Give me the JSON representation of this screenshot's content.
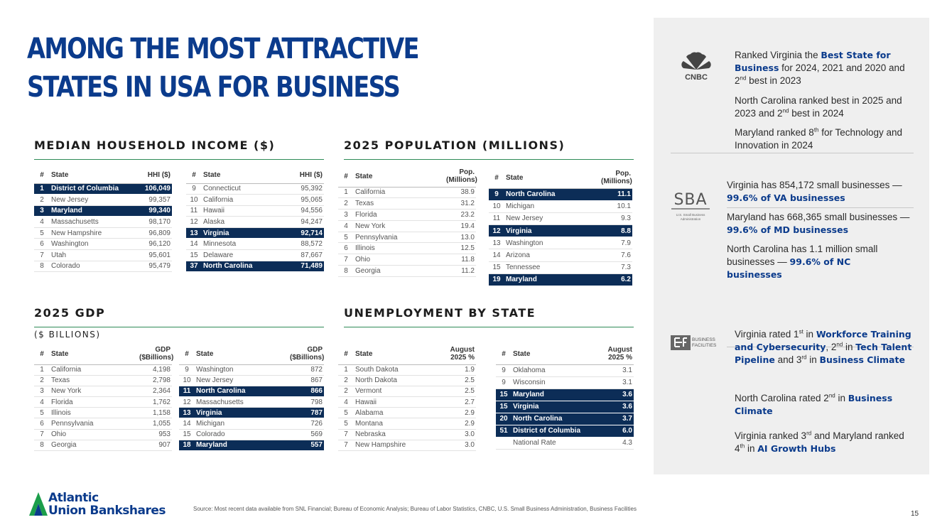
{
  "title_line1": "AMONG THE MOST ATTRACTIVE",
  "title_line2": "STATES IN USA FOR BUSINESS",
  "income": {
    "heading": "MEDIAN HOUSEHOLD INCOME ($)",
    "col_num": "#",
    "col_state": "State",
    "col_val": "HHI ($)",
    "left": [
      [
        "1",
        "District of Columbia",
        "106,049",
        true
      ],
      [
        "2",
        "New Jersey",
        "99,357",
        false
      ],
      [
        "3",
        "Maryland",
        "99,340",
        true
      ],
      [
        "4",
        "Massachusetts",
        "98,170",
        false
      ],
      [
        "5",
        "New Hampshire",
        "96,809",
        false
      ],
      [
        "6",
        "Washington",
        "96,120",
        false
      ],
      [
        "7",
        "Utah",
        "95,601",
        false
      ],
      [
        "8",
        "Colorado",
        "95,479",
        false
      ]
    ],
    "right": [
      [
        "9",
        "Connecticut",
        "95,392",
        false
      ],
      [
        "10",
        "California",
        "95,065",
        false
      ],
      [
        "11",
        "Hawaii",
        "94,556",
        false
      ],
      [
        "12",
        "Alaska",
        "94,247",
        false
      ],
      [
        "13",
        "Virginia",
        "92,714",
        true
      ],
      [
        "14",
        "Minnesota",
        "88,572",
        false
      ],
      [
        "15",
        "Delaware",
        "87,667",
        false
      ],
      [
        "37",
        "North Carolina",
        "71,489",
        true
      ]
    ]
  },
  "population": {
    "heading": "2025 POPULATION (MILLIONS)",
    "col_num": "#",
    "col_state": "State",
    "col_val": "Pop. (Millions)",
    "left": [
      [
        "1",
        "California",
        "38.9",
        false
      ],
      [
        "2",
        "Texas",
        "31.2",
        false
      ],
      [
        "3",
        "Florida",
        "23.2",
        false
      ],
      [
        "4",
        "New York",
        "19.4",
        false
      ],
      [
        "5",
        "Pennsylvania",
        "13.0",
        false
      ],
      [
        "6",
        "Illinois",
        "12.5",
        false
      ],
      [
        "7",
        "Ohio",
        "11.8",
        false
      ],
      [
        "8",
        "Georgia",
        "11.2",
        false
      ]
    ],
    "right": [
      [
        "9",
        "North Carolina",
        "11.1",
        true
      ],
      [
        "10",
        "Michigan",
        "10.1",
        false
      ],
      [
        "11",
        "New Jersey",
        "9.3",
        false
      ],
      [
        "12",
        "Virginia",
        "8.8",
        true
      ],
      [
        "13",
        "Washington",
        "7.9",
        false
      ],
      [
        "14",
        "Arizona",
        "7.6",
        false
      ],
      [
        "15",
        "Tennessee",
        "7.3",
        false
      ],
      [
        "19",
        "Maryland",
        "6.2",
        true
      ]
    ]
  },
  "gdp": {
    "heading": "2025 GDP",
    "subheading": "($ BILLIONS)",
    "col_num": "#",
    "col_state": "State",
    "col_val": "GDP ($Billions)",
    "left": [
      [
        "1",
        "California",
        "4,198",
        false
      ],
      [
        "2",
        "Texas",
        "2,798",
        false
      ],
      [
        "3",
        "New York",
        "2,364",
        false
      ],
      [
        "4",
        "Florida",
        "1,762",
        false
      ],
      [
        "5",
        "Illinois",
        "1,158",
        false
      ],
      [
        "6",
        "Pennsylvania",
        "1,055",
        false
      ],
      [
        "7",
        "Ohio",
        "953",
        false
      ],
      [
        "8",
        "Georgia",
        "907",
        false
      ]
    ],
    "right": [
      [
        "9",
        "Washington",
        "872",
        false
      ],
      [
        "10",
        "New Jersey",
        "867",
        false
      ],
      [
        "11",
        "North Carolina",
        "866",
        true
      ],
      [
        "12",
        "Massachusetts",
        "798",
        false
      ],
      [
        "13",
        "Virginia",
        "787",
        true
      ],
      [
        "14",
        "Michigan",
        "726",
        false
      ],
      [
        "15",
        "Colorado",
        "569",
        false
      ],
      [
        "18",
        "Maryland",
        "557",
        true
      ]
    ]
  },
  "unemployment": {
    "heading": "UNEMPLOYMENT BY STATE",
    "col_num": "#",
    "col_state": "State",
    "col_val": "August 2025 %",
    "left": [
      [
        "1",
        "South Dakota",
        "1.9",
        false
      ],
      [
        "2",
        "North Dakota",
        "2.5",
        false
      ],
      [
        "2",
        "Vermont",
        "2.5",
        false
      ],
      [
        "4",
        "Hawaii",
        "2.7",
        false
      ],
      [
        "5",
        "Alabama",
        "2.9",
        false
      ],
      [
        "5",
        "Montana",
        "2.9",
        false
      ],
      [
        "7",
        "Nebraska",
        "3.0",
        false
      ],
      [
        "7",
        "New Hampshire",
        "3.0",
        false
      ]
    ],
    "right": [
      [
        "9",
        "Oklahoma",
        "3.1",
        false
      ],
      [
        "9",
        "Wisconsin",
        "3.1",
        false
      ],
      [
        "15",
        "Maryland",
        "3.6",
        true
      ],
      [
        "15",
        "Virginia",
        "3.6",
        true
      ],
      [
        "20",
        "North Carolina",
        "3.7",
        true
      ],
      [
        "51",
        "District of Columbia",
        "6.0",
        true
      ],
      [
        "",
        "National Rate",
        "4.3",
        false
      ]
    ]
  },
  "cnbc": {
    "logo": "CNBC",
    "p1": [
      [
        "Ranked Virginia the ",
        0
      ],
      [
        "Best State for Business",
        1
      ],
      [
        " for 2024, 2021 and 2020 and 2",
        0
      ],
      [
        "nd",
        2
      ],
      [
        " best in 2023",
        0
      ]
    ],
    "p2": [
      [
        "North Carolina ranked best in 2025 and 2023 and 2",
        0
      ],
      [
        "nd",
        2
      ],
      [
        " best in 2024",
        0
      ]
    ],
    "p3": [
      [
        "Maryland ranked 8",
        0
      ],
      [
        "th",
        2
      ],
      [
        " for Technology and Innovation in 2024",
        0
      ]
    ]
  },
  "sba": {
    "logo": "SBA",
    "logo_sub": "U.S. Small Business Administration",
    "p1": [
      [
        "Virginia has 854,172 small businesses — ",
        0
      ],
      [
        "99.6% of VA businesses",
        1
      ]
    ],
    "p2": [
      [
        "Maryland has 668,365 small businesses — ",
        0
      ],
      [
        "99.6% of MD businesses",
        1
      ]
    ],
    "p3": [
      [
        "North Carolina has 1.1 million small businesses — ",
        0
      ],
      [
        "99.6% of NC businesses",
        1
      ]
    ]
  },
  "bf": {
    "logo": "BUSINESS FACILITIES",
    "p1": [
      [
        "Virginia rated 1",
        0
      ],
      [
        "st",
        2
      ],
      [
        " in ",
        0
      ],
      [
        "Workforce Training and Cybersecurity",
        1
      ],
      [
        ", 2",
        0
      ],
      [
        "nd",
        2
      ],
      [
        " in ",
        0
      ],
      [
        "Tech Talent Pipeline",
        1
      ],
      [
        " and 3",
        0
      ],
      [
        "rd",
        2
      ],
      [
        " in ",
        0
      ],
      [
        "Business Climate",
        1
      ]
    ],
    "p2": [
      [
        "North Carolina rated 2",
        0
      ],
      [
        "nd",
        2
      ],
      [
        " in ",
        0
      ],
      [
        "Business Climate",
        1
      ]
    ],
    "p3": [
      [
        "Virginia ranked 3",
        0
      ],
      [
        "rd",
        2
      ],
      [
        " and Maryland ranked 4",
        0
      ],
      [
        "th",
        2
      ],
      [
        " in ",
        0
      ],
      [
        "AI Growth Hubs",
        1
      ]
    ]
  },
  "footer": {
    "company_line1": "Atlantic",
    "company_line2": "Union Bankshares",
    "source": "Source: Most recent data available from SNL Financial; Bureau of Economic Analysis; Bureau of Labor Statistics, CNBC, U.S. Small Business Administration, Business Facilities",
    "page": "15"
  },
  "colors": {
    "navy": "#0c2d57",
    "blue": "#0b3b8c",
    "green": "#2e8b57",
    "panel": "#efefef"
  }
}
